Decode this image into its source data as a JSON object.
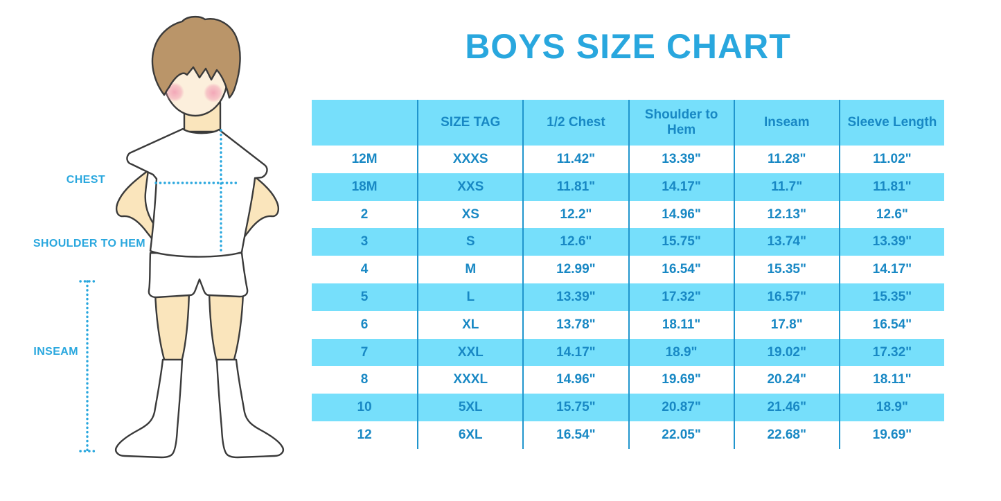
{
  "title": "BOYS SIZE CHART",
  "diagram": {
    "chest_label": "CHEST",
    "shoulder_label": "SHOULDER TO HEM",
    "inseam_label": "INSEAM"
  },
  "colors": {
    "accent": "#29A7DE",
    "table_text": "#1888C4",
    "row_fill": "#76DFFB",
    "grid_line": "#2095CD",
    "outline": "#3A3A3A",
    "skin": "#FAE5BC",
    "face": "#FCEFDC",
    "hair": "#BA9569",
    "cheek": "#F2A4B6",
    "cloth": "#FFFFFF",
    "background": "#FFFFFF"
  },
  "chart_data": {
    "type": "table",
    "title": "BOYS SIZE CHART",
    "columns": [
      "",
      "SIZE TAG",
      "1/2 Chest",
      "Shoulder to Hem",
      "Inseam",
      "Sleeve Length"
    ],
    "rows": [
      [
        "12M",
        "XXXS",
        "11.42\"",
        "13.39\"",
        "11.28\"",
        "11.02\""
      ],
      [
        "18M",
        "XXS",
        "11.81\"",
        "14.17\"",
        "11.7\"",
        "11.81\""
      ],
      [
        "2",
        "XS",
        "12.2\"",
        "14.96\"",
        "12.13\"",
        "12.6\""
      ],
      [
        "3",
        "S",
        "12.6\"",
        "15.75\"",
        "13.74\"",
        "13.39\""
      ],
      [
        "4",
        "M",
        "12.99\"",
        "16.54\"",
        "15.35\"",
        "14.17\""
      ],
      [
        "5",
        "L",
        "13.39\"",
        "17.32\"",
        "16.57\"",
        "15.35\""
      ],
      [
        "6",
        "XL",
        "13.78\"",
        "18.11\"",
        "17.8\"",
        "16.54\""
      ],
      [
        "7",
        "XXL",
        "14.17\"",
        "18.9\"",
        "19.02\"",
        "17.32\""
      ],
      [
        "8",
        "XXXL",
        "14.96\"",
        "19.69\"",
        "20.24\"",
        "18.11\""
      ],
      [
        "10",
        "5XL",
        "15.75\"",
        "20.87\"",
        "21.46\"",
        "18.9\""
      ],
      [
        "12",
        "6XL",
        "16.54\"",
        "22.05\"",
        "22.68\"",
        "19.69\""
      ]
    ],
    "legend_position": "none",
    "grid": "vertical-column-separators-only",
    "row_striping": "alternating white and light-cyan starting with white; header row light-cyan"
  }
}
